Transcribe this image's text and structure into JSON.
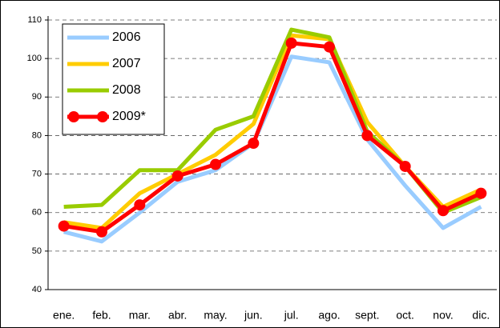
{
  "chart_data": {
    "type": "line",
    "categories": [
      "ene.",
      "feb.",
      "mar.",
      "abr.",
      "may.",
      "jun.",
      "jul.",
      "ago.",
      "sept.",
      "oct.",
      "nov.",
      "dic."
    ],
    "series": [
      {
        "name": "2006",
        "color": "#99ccff",
        "values": [
          55,
          52.5,
          60,
          68,
          71,
          78,
          100.5,
          99,
          79,
          67,
          56,
          61.5
        ]
      },
      {
        "name": "2007",
        "color": "#ffcc00",
        "values": [
          57.5,
          56,
          65,
          70,
          75,
          83,
          106,
          105,
          83.5,
          72,
          61.5,
          66
        ]
      },
      {
        "name": "2008",
        "color": "#99cc00",
        "values": [
          61.5,
          62,
          71,
          71,
          81.5,
          85,
          107.5,
          105.5,
          81,
          72,
          60,
          64
        ]
      },
      {
        "name": "2009*",
        "color": "#ff0000",
        "markers": true,
        "values": [
          56.5,
          55,
          62,
          69.5,
          72.5,
          78,
          104,
          103,
          80,
          72,
          60.5,
          65
        ]
      }
    ],
    "ylim": [
      40,
      110
    ],
    "yticks": [
      40,
      50,
      60,
      70,
      80,
      90,
      100,
      110
    ],
    "grid": true,
    "legend": "top-left"
  }
}
